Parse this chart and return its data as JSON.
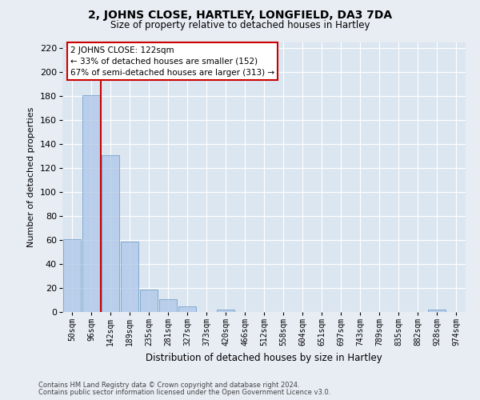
{
  "title": "2, JOHNS CLOSE, HARTLEY, LONGFIELD, DA3 7DA",
  "subtitle": "Size of property relative to detached houses in Hartley",
  "xlabel": "Distribution of detached houses by size in Hartley",
  "ylabel": "Number of detached properties",
  "bin_labels": [
    "50sqm",
    "96sqm",
    "142sqm",
    "189sqm",
    "235sqm",
    "281sqm",
    "327sqm",
    "373sqm",
    "420sqm",
    "466sqm",
    "512sqm",
    "558sqm",
    "604sqm",
    "651sqm",
    "697sqm",
    "743sqm",
    "789sqm",
    "835sqm",
    "882sqm",
    "928sqm",
    "974sqm"
  ],
  "bar_values": [
    61,
    181,
    131,
    59,
    19,
    11,
    5,
    0,
    2,
    0,
    0,
    0,
    0,
    0,
    0,
    0,
    0,
    0,
    0,
    2,
    0
  ],
  "bar_color": "#aec6e8",
  "bar_edge_color": "#5a8fc0",
  "vline_color": "#cc0000",
  "annotation_title": "2 JOHNS CLOSE: 122sqm",
  "annotation_line1": "← 33% of detached houses are smaller (152)",
  "annotation_line2": "67% of semi-detached houses are larger (313) →",
  "annotation_box_color": "#ffffff",
  "annotation_box_edge": "#cc0000",
  "ylim": [
    0,
    225
  ],
  "yticks": [
    0,
    20,
    40,
    60,
    80,
    100,
    120,
    140,
    160,
    180,
    200,
    220
  ],
  "bg_color": "#e8edf4",
  "plot_bg_color": "#dce6f0",
  "footnote1": "Contains HM Land Registry data © Crown copyright and database right 2024.",
  "footnote2": "Contains public sector information licensed under the Open Government Licence v3.0."
}
